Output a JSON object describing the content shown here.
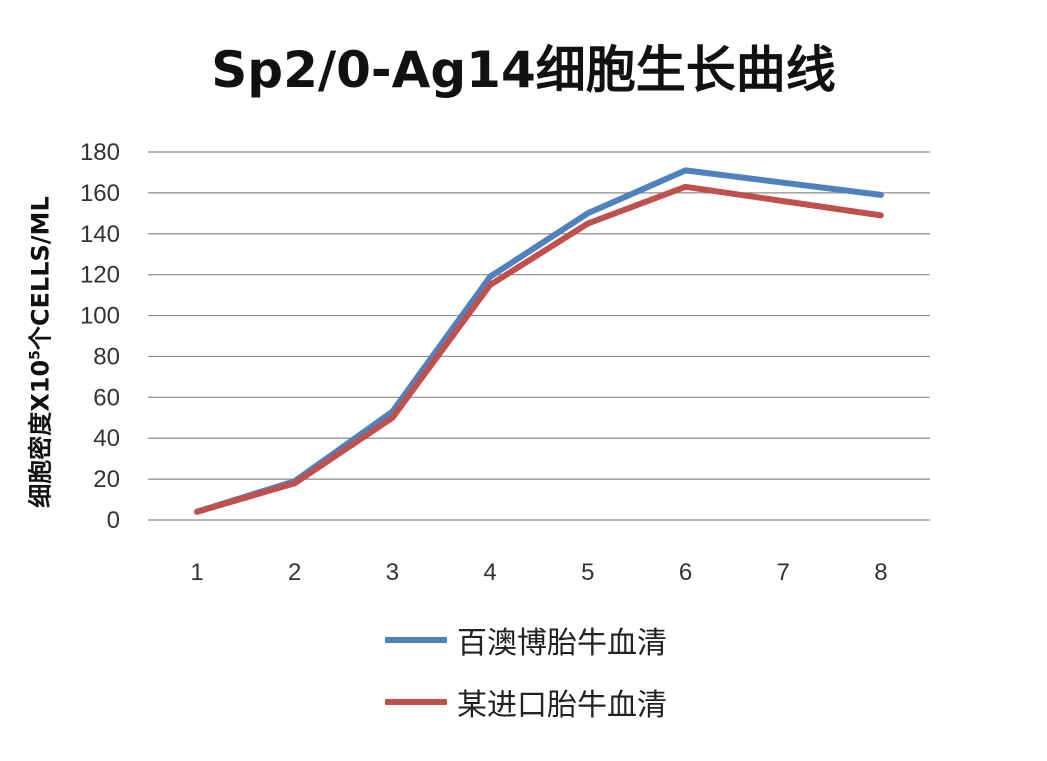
{
  "chart_data": {
    "type": "line",
    "title": "Sp2/0-Ag14细胞生长曲线",
    "ylabel_main": "细胞密度X10",
    "ylabel_exp": "5",
    "ylabel_tail": "个CELLS/ML",
    "xlabel": "",
    "x": [
      1,
      2,
      3,
      4,
      5,
      6,
      7,
      8
    ],
    "ylim": [
      0,
      180
    ],
    "yticks": [
      0,
      20,
      40,
      60,
      80,
      100,
      120,
      140,
      160,
      180
    ],
    "grid": true,
    "legend_position": "bottom",
    "series": [
      {
        "name": "百澳博胎牛血清",
        "color": "#4F81BD",
        "values": [
          4,
          19,
          53,
          119,
          150,
          171,
          165,
          159
        ]
      },
      {
        "name": "某进口胎牛血清",
        "color": "#C0504D",
        "values": [
          4,
          18,
          50,
          115,
          145,
          163,
          156,
          149
        ]
      }
    ]
  }
}
